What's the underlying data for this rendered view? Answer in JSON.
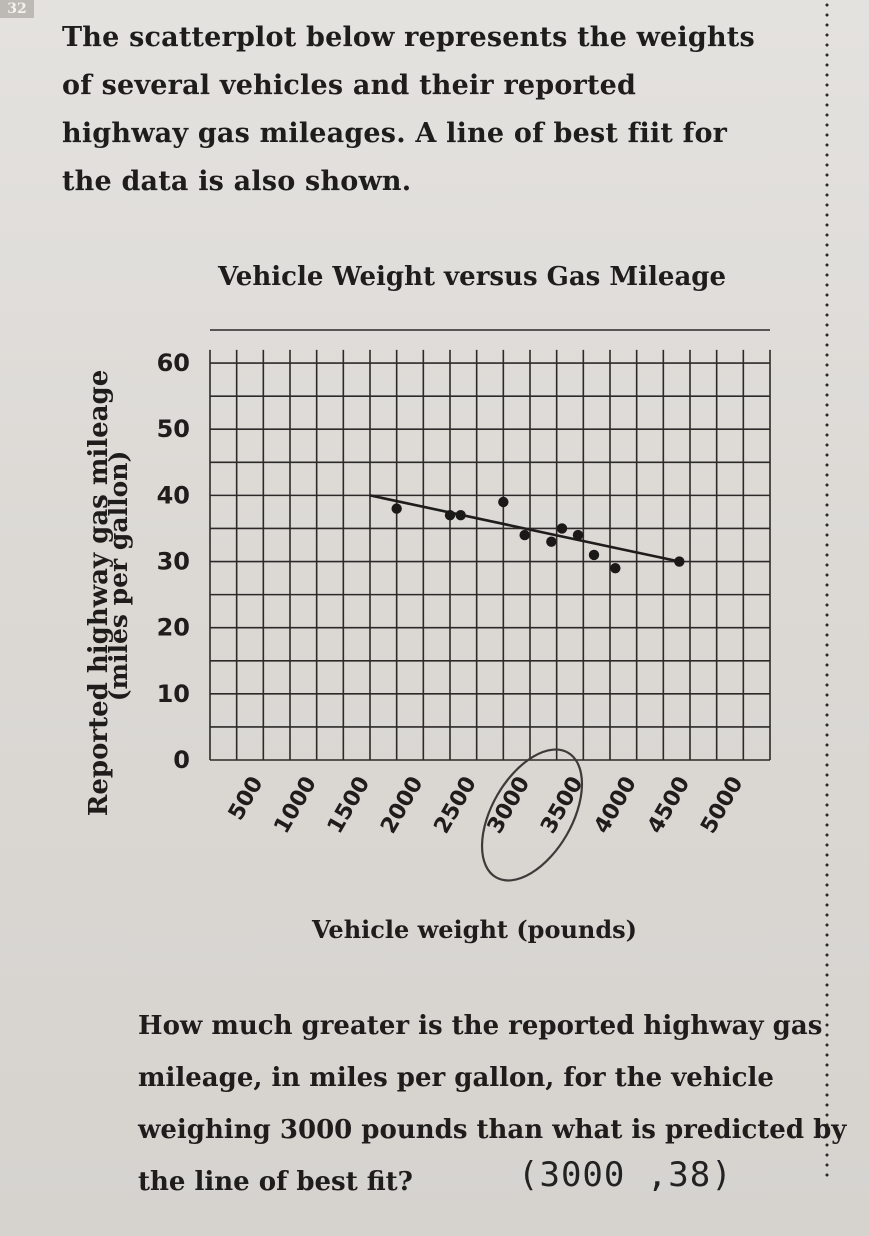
{
  "page_corner": "32",
  "intro_text": "The scatterplot below represents the weights of several vehicles and their reported highway gas mileages. A line of best fiit for the data is also shown.",
  "question_text": "How much greater is the reported highway gas mileage, in miles per gallon, for the vehicle weighing 3000 pounds than what is predicted by the line of best fit?",
  "handwritten_note": "(3000 ,38)",
  "chart_data": {
    "type": "scatter",
    "title": "Vehicle Weight versus Gas Mileage",
    "xlabel": "Vehicle weight (pounds)",
    "ylabel": "Reported highway gas mileage",
    "ylabel_units": "(miles per gallon)",
    "x_ticks": [
      "500",
      "1000",
      "1500",
      "2000",
      "2500",
      "3000",
      "3500",
      "4000",
      "4500",
      "5000"
    ],
    "y_ticks": [
      "0",
      "10",
      "20",
      "30",
      "40",
      "50",
      "60"
    ],
    "xlim": [
      0,
      5250
    ],
    "ylim": [
      0,
      65
    ],
    "grid": true,
    "points": [
      {
        "x": 1750,
        "y": 38
      },
      {
        "x": 2250,
        "y": 37
      },
      {
        "x": 2350,
        "y": 37
      },
      {
        "x": 2750,
        "y": 39
      },
      {
        "x": 2950,
        "y": 34
      },
      {
        "x": 3200,
        "y": 33
      },
      {
        "x": 3300,
        "y": 35
      },
      {
        "x": 3450,
        "y": 34
      },
      {
        "x": 3600,
        "y": 31
      },
      {
        "x": 3800,
        "y": 29
      },
      {
        "x": 4400,
        "y": 30
      }
    ],
    "best_fit_line": {
      "x": [
        1500,
        4400
      ],
      "y": [
        40,
        30
      ]
    }
  }
}
